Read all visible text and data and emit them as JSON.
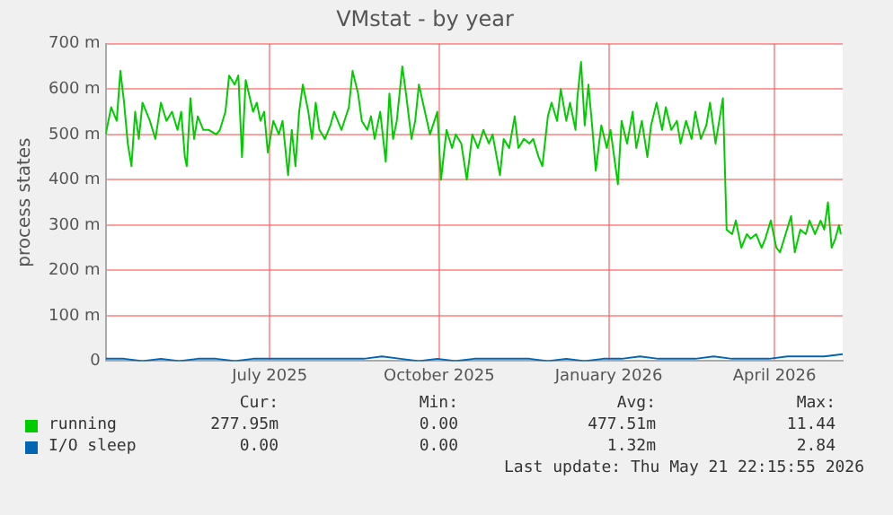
{
  "chart_data": {
    "type": "line",
    "title": "VMstat - by year",
    "ylabel": "process states",
    "xlim": [
      "2025-04-17",
      "2026-05-22"
    ],
    "xticks": [
      {
        "value": "2025-07-15",
        "label": "July 2025"
      },
      {
        "value": "2025-10-15",
        "label": "October 2025"
      },
      {
        "value": "2026-01-15",
        "label": "January 2026"
      },
      {
        "value": "2026-04-15",
        "label": "April 2026"
      }
    ],
    "ylim": [
      0,
      700
    ],
    "yticks": [
      0,
      {
        "value": 100,
        "label": "100 m"
      },
      {
        "value": 200,
        "label": "200 m"
      },
      {
        "value": 300,
        "label": "300 m"
      },
      {
        "value": 400,
        "label": "400 m"
      },
      {
        "value": 500,
        "label": "500 m"
      },
      {
        "value": 600,
        "label": "600 m"
      },
      {
        "value": 700,
        "label": "700 m"
      }
    ],
    "grid": true,
    "legend": "bottom",
    "marker": "none",
    "line_style": "solid",
    "series": [
      {
        "name": "running",
        "color": "#00cc00",
        "x": [
          "2025-04-17",
          "2025-04-20",
          "2025-04-23",
          "2025-04-25",
          "2025-04-27",
          "2025-04-29",
          "2025-05-01",
          "2025-05-03",
          "2025-05-05",
          "2025-05-07",
          "2025-05-11",
          "2025-05-14",
          "2025-05-17",
          "2025-05-20",
          "2025-05-23",
          "2025-05-26",
          "2025-05-28",
          "2025-05-30",
          "2025-05-31",
          "2025-06-02",
          "2025-06-04",
          "2025-06-06",
          "2025-06-09",
          "2025-06-12",
          "2025-06-16",
          "2025-06-18",
          "2025-06-21",
          "2025-06-23",
          "2025-06-26",
          "2025-06-28",
          "2025-06-30",
          "2025-07-02",
          "2025-07-06",
          "2025-07-08",
          "2025-07-10",
          "2025-07-12",
          "2025-07-14",
          "2025-07-17",
          "2025-07-20",
          "2025-07-22",
          "2025-07-25",
          "2025-07-27",
          "2025-07-29",
          "2025-07-31",
          "2025-08-02",
          "2025-08-05",
          "2025-08-07",
          "2025-08-09",
          "2025-08-11",
          "2025-08-14",
          "2025-08-17",
          "2025-08-19",
          "2025-08-23",
          "2025-08-27",
          "2025-08-29",
          "2025-09-01",
          "2025-09-03",
          "2025-09-06",
          "2025-09-08",
          "2025-09-10",
          "2025-09-13",
          "2025-09-16",
          "2025-09-18",
          "2025-09-20",
          "2025-09-22",
          "2025-09-25",
          "2025-09-27",
          "2025-09-30",
          "2025-10-02",
          "2025-10-04",
          "2025-10-10",
          "2025-10-14",
          "2025-10-16",
          "2025-10-19",
          "2025-10-22",
          "2025-10-24",
          "2025-10-27",
          "2025-10-30",
          "2025-11-02",
          "2025-11-05",
          "2025-11-08",
          "2025-11-11",
          "2025-11-13",
          "2025-11-17",
          "2025-11-19",
          "2025-11-22",
          "2025-11-25",
          "2025-11-27",
          "2025-11-30",
          "2025-12-03",
          "2025-12-05",
          "2025-12-08",
          "2025-12-10",
          "2025-12-13",
          "2025-12-15",
          "2025-12-18",
          "2025-12-20",
          "2025-12-23",
          "2025-12-25",
          "2025-12-28",
          "2025-12-29",
          "2025-12-31",
          "2026-01-02",
          "2026-01-04",
          "2026-01-06",
          "2026-01-08",
          "2026-01-11",
          "2026-01-14",
          "2026-01-16",
          "2026-01-20",
          "2026-01-22",
          "2026-01-25",
          "2026-01-28",
          "2026-01-30",
          "2026-02-02",
          "2026-02-05",
          "2026-02-07",
          "2026-02-10",
          "2026-02-13",
          "2026-02-15",
          "2026-02-18",
          "2026-02-21",
          "2026-02-23",
          "2026-02-26",
          "2026-03-01",
          "2026-03-03",
          "2026-03-06",
          "2026-03-09",
          "2026-03-11",
          "2026-03-14",
          "2026-03-16",
          "2026-03-18",
          "2026-03-20",
          "2026-03-23",
          "2026-03-25",
          "2026-03-28",
          "2026-03-31",
          "2026-04-02",
          "2026-04-05",
          "2026-04-08",
          "2026-04-10",
          "2026-04-13",
          "2026-04-16",
          "2026-04-18",
          "2026-04-21",
          "2026-04-24",
          "2026-04-26",
          "2026-04-29",
          "2026-05-02",
          "2026-05-04",
          "2026-05-07",
          "2026-05-10",
          "2026-05-12",
          "2026-05-14",
          "2026-05-16",
          "2026-05-18",
          "2026-05-20",
          "2026-05-21"
        ],
        "values": [
          500,
          560,
          530,
          640,
          570,
          480,
          430,
          550,
          490,
          570,
          530,
          490,
          570,
          530,
          550,
          510,
          550,
          450,
          430,
          580,
          490,
          540,
          510,
          510,
          500,
          510,
          550,
          630,
          610,
          630,
          450,
          620,
          550,
          570,
          530,
          550,
          460,
          530,
          500,
          530,
          410,
          510,
          430,
          550,
          610,
          550,
          490,
          570,
          510,
          490,
          520,
          550,
          510,
          560,
          640,
          590,
          530,
          510,
          540,
          490,
          550,
          440,
          590,
          490,
          530,
          650,
          590,
          490,
          530,
          610,
          500,
          550,
          400,
          510,
          470,
          500,
          480,
          400,
          500,
          470,
          510,
          480,
          500,
          410,
          490,
          470,
          540,
          470,
          490,
          480,
          490,
          450,
          430,
          540,
          570,
          530,
          600,
          530,
          570,
          510,
          580,
          660,
          520,
          610,
          520,
          420,
          520,
          470,
          510,
          390,
          530,
          480,
          550,
          470,
          530,
          450,
          520,
          570,
          510,
          560,
          510,
          530,
          480,
          530,
          490,
          550,
          490,
          520,
          570,
          480,
          530,
          580,
          290,
          280,
          310,
          250,
          280,
          270,
          280,
          250,
          270,
          310,
          250,
          240,
          280,
          320,
          240,
          290,
          280,
          310,
          280,
          310,
          290,
          350,
          250,
          270,
          300,
          280
        ]
      },
      {
        "name": "I/O sleep",
        "color": "#0066b3",
        "x": [
          "2025-04-17",
          "2025-04-27",
          "2025-05-07",
          "2025-05-17",
          "2025-05-27",
          "2025-06-06",
          "2025-06-16",
          "2025-06-26",
          "2025-07-06",
          "2025-07-16",
          "2025-07-26",
          "2025-08-05",
          "2025-08-15",
          "2025-08-25",
          "2025-09-04",
          "2025-09-14",
          "2025-09-24",
          "2025-10-04",
          "2025-10-14",
          "2025-10-24",
          "2025-11-03",
          "2025-11-13",
          "2025-11-23",
          "2025-12-03",
          "2025-12-13",
          "2025-12-23",
          "2026-01-02",
          "2026-01-12",
          "2026-01-22",
          "2026-02-01",
          "2026-02-11",
          "2026-02-21",
          "2026-03-03",
          "2026-03-13",
          "2026-03-23",
          "2026-04-02",
          "2026-04-12",
          "2026-04-22",
          "2026-05-02",
          "2026-05-12",
          "2026-05-22"
        ],
        "values": [
          5,
          5,
          0,
          5,
          0,
          5,
          5,
          0,
          5,
          5,
          5,
          5,
          5,
          5,
          5,
          10,
          5,
          0,
          5,
          0,
          5,
          5,
          5,
          5,
          0,
          5,
          0,
          5,
          5,
          10,
          5,
          5,
          5,
          10,
          5,
          5,
          5,
          10,
          10,
          10,
          15
        ]
      }
    ],
    "annotations": [
      "Cur:",
      "Min:",
      "Avg:",
      "Max:",
      "277.95m",
      "0.00",
      "477.51m",
      "11.44",
      "0.00",
      "0.00",
      "1.32m",
      "2.84",
      "Last update: Thu May 21 22:15:55 2026"
    ]
  }
}
